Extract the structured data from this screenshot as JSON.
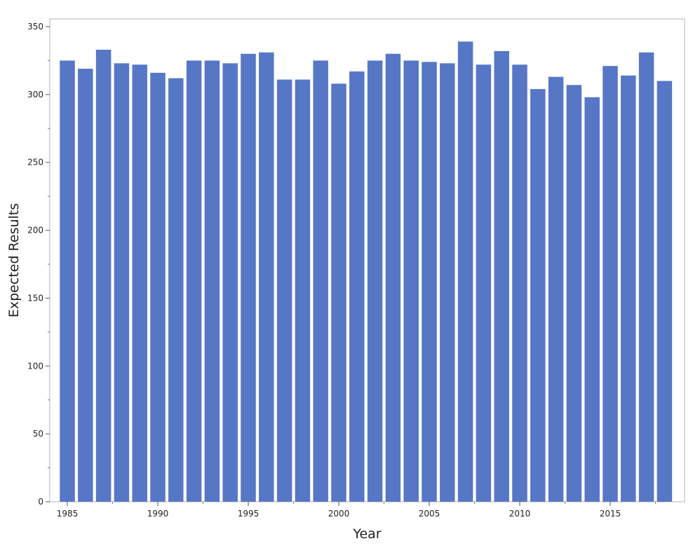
{
  "chart_data": {
    "type": "bar",
    "title": "",
    "xlabel": "Year",
    "ylabel": "Expected Results",
    "categories": [
      1985,
      1986,
      1987,
      1988,
      1989,
      1990,
      1991,
      1992,
      1993,
      1994,
      1995,
      1996,
      1997,
      1998,
      1999,
      2000,
      2001,
      2002,
      2003,
      2004,
      2005,
      2006,
      2007,
      2008,
      2009,
      2010,
      2011,
      2012,
      2013,
      2014,
      2015,
      2016,
      2017,
      2018
    ],
    "values": [
      325,
      319,
      333,
      323,
      322,
      316,
      312,
      325,
      325,
      323,
      330,
      331,
      311,
      311,
      325,
      308,
      317,
      325,
      330,
      325,
      324,
      323,
      339,
      322,
      332,
      322,
      304,
      313,
      307,
      298,
      321,
      314,
      331,
      310
    ],
    "ylim": [
      0,
      350
    ],
    "yticks": [
      0,
      50,
      100,
      150,
      200,
      250,
      300,
      350
    ],
    "xticks": [
      1985,
      1990,
      1995,
      2000,
      2005,
      2010,
      2015
    ],
    "grid": false,
    "bar_color": "#5677c6",
    "frame_color": "#b4b4b4"
  }
}
